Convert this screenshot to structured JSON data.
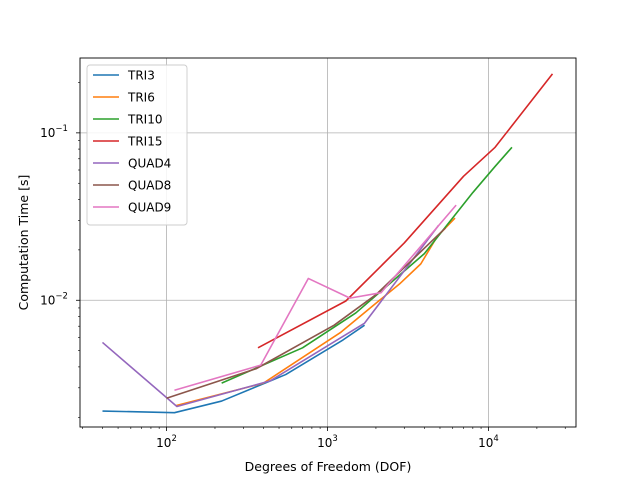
{
  "chart_data": {
    "type": "line",
    "title": "",
    "xlabel": "Degrees of Freedom (DOF)",
    "ylabel": "Computation Time [s]",
    "xscale": "log",
    "yscale": "log",
    "xlim": [
      29,
      35000
    ],
    "ylim": [
      0.00175,
      0.28
    ],
    "grid": true,
    "legend_position": "upper-left",
    "x_ticks": [
      {
        "value": 100,
        "base": "10",
        "exp": "2"
      },
      {
        "value": 1000,
        "base": "10",
        "exp": "3"
      },
      {
        "value": 10000,
        "base": "10",
        "exp": "4"
      }
    ],
    "y_ticks": [
      {
        "value": 0.01,
        "base": "10",
        "exp": "−2"
      },
      {
        "value": 0.1,
        "base": "10",
        "exp": "−1"
      }
    ],
    "series": [
      {
        "name": "TRI3",
        "color": "#1f77b4",
        "x": [
          40,
          112,
          220,
          550,
          1250,
          1700
        ],
        "y": [
          0.00218,
          0.00213,
          0.0025,
          0.0036,
          0.0058,
          0.0071
        ]
      },
      {
        "name": "TRI6",
        "color": "#ff7f0e",
        "x": [
          115,
          400,
          1200,
          2000,
          2800,
          3800,
          4800,
          6200
        ],
        "y": [
          0.00235,
          0.0032,
          0.0064,
          0.0096,
          0.0125,
          0.0165,
          0.024,
          0.031
        ]
      },
      {
        "name": "TRI10",
        "color": "#2ca02c",
        "x": [
          220,
          700,
          1500,
          4000,
          8000,
          11000,
          14000
        ],
        "y": [
          0.0032,
          0.0052,
          0.0084,
          0.019,
          0.044,
          0.063,
          0.082
        ]
      },
      {
        "name": "TRI15",
        "color": "#d62728",
        "x": [
          370,
          1300,
          3000,
          7000,
          11000,
          25000
        ],
        "y": [
          0.0052,
          0.0099,
          0.022,
          0.055,
          0.082,
          0.225
        ]
      },
      {
        "name": "QUAD4",
        "color": "#9467bd",
        "x": [
          40,
          116,
          440,
          1700,
          4900
        ],
        "y": [
          0.0056,
          0.00232,
          0.0033,
          0.0073,
          0.028
        ]
      },
      {
        "name": "QUAD8",
        "color": "#8c564b",
        "x": [
          100,
          360,
          1100,
          2000,
          5400
        ],
        "y": [
          0.0026,
          0.0039,
          0.0071,
          0.0108,
          0.027
        ]
      },
      {
        "name": "QUAD9",
        "color": "#e377c2",
        "x": [
          112,
          385,
          760,
          1380,
          2150,
          6300
        ],
        "y": [
          0.0029,
          0.0041,
          0.0135,
          0.0103,
          0.0111,
          0.037
        ]
      }
    ]
  }
}
